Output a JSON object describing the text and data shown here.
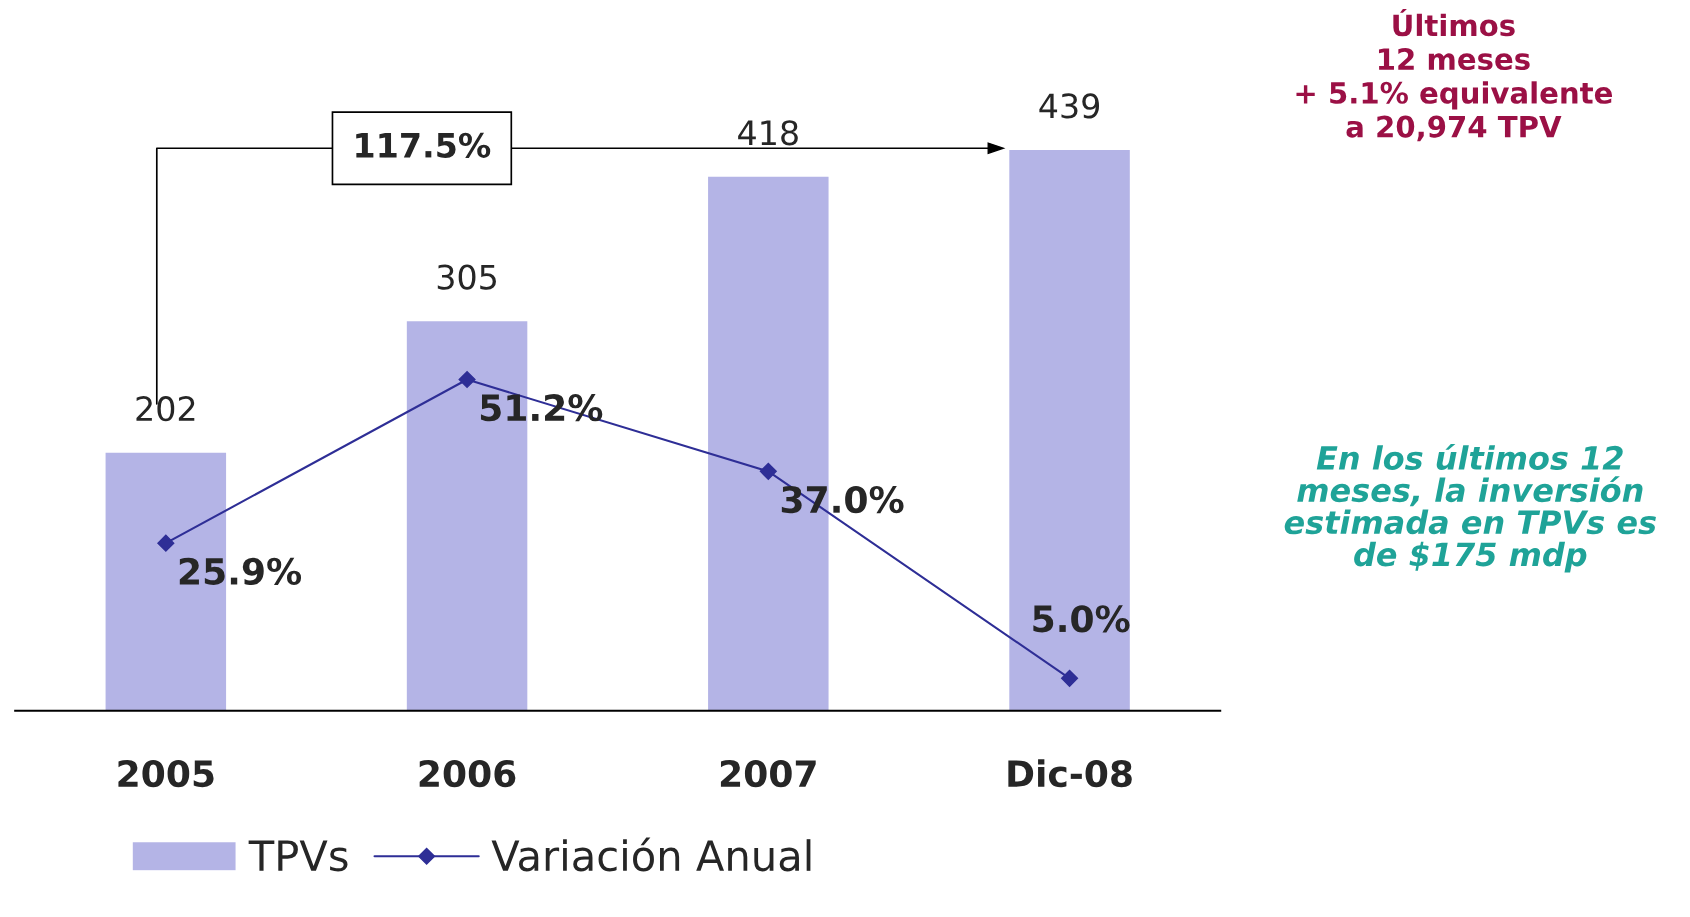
{
  "chart_data": {
    "type": "bar",
    "categories": [
      "2005",
      "2006",
      "2007",
      "Dic-08"
    ],
    "series": [
      {
        "name": "TPVs",
        "color": "#b4b4e6",
        "values": [
          202,
          305,
          418,
          439
        ],
        "value_labels": [
          "202",
          "305",
          "418",
          "439"
        ]
      },
      {
        "name": "Variación Anual",
        "type": "line",
        "axis": "y2",
        "color": "#2e2e96",
        "marker": "diamond",
        "values": [
          25.9,
          51.2,
          37.0,
          5.0
        ],
        "value_labels": [
          "25.9%",
          "51.2%",
          "37.0%",
          "5.0%"
        ]
      }
    ],
    "tick_labels": "x",
    "grid": false,
    "legend": "bottom",
    "annotations": [
      "117.5%",
      "Últimos\n12 meses\n+ 5.1% equivalente\na 20,974 TPV",
      "En los últimos 12\nmeses, la inversión\nestimada en TPVs es\nde $175 mdp"
    ]
  }
}
